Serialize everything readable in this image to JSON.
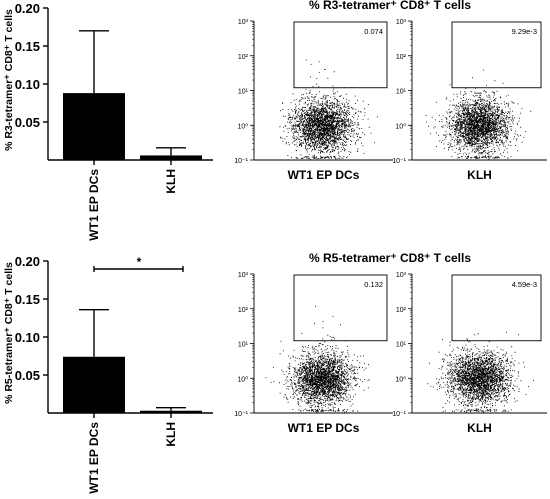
{
  "figure": {
    "panels": [
      {
        "id": "r3",
        "bar_ylabel": "% R3-tetramer⁺ CD8⁺ T cells",
        "flow_title": "% R3-tetramer⁺  CD8⁺ T cells",
        "significance": ""
      },
      {
        "id": "r5",
        "bar_ylabel": "% R5-tetramer⁺ CD8⁺ T cells",
        "flow_title": "% R5-tetramer⁺  CD8⁺ T cells",
        "significance": "*"
      }
    ]
  },
  "chart_data": [
    {
      "type": "bar",
      "title": "",
      "xlabel": "",
      "ylabel": "% R3-tetramer⁺ CD8⁺ T cells",
      "categories": [
        "WT1 EP DCs",
        "KLH"
      ],
      "values": [
        0.088,
        0.006
      ],
      "error": [
        0.082,
        0.01
      ],
      "ylim": [
        0,
        0.2
      ],
      "yticks": [
        "0.05",
        "0.10",
        "0.15",
        "0.20"
      ],
      "ytick_values": [
        0.05,
        0.1,
        0.15,
        0.2
      ],
      "bar_color": "#000000"
    },
    {
      "type": "scatter",
      "title": "% R3-tetramer⁺  CD8⁺ T cells",
      "subplots": [
        {
          "xlabel": "WT1 EP DCs",
          "gate_value": "0.074"
        },
        {
          "xlabel": "KLH",
          "gate_value": "9.29e-3"
        }
      ],
      "y_log": true,
      "ylim": [
        0.1,
        1000
      ],
      "yticks": [
        "10⁻¹",
        "10⁰",
        "10¹",
        "10²",
        "10³"
      ],
      "gate_ylim": [
        12,
        1000
      ]
    },
    {
      "type": "bar",
      "title": "",
      "xlabel": "",
      "ylabel": "% R5-tetramer⁺ CD8⁺ T cells",
      "categories": [
        "WT1 EP DCs",
        "KLH"
      ],
      "values": [
        0.074,
        0.003
      ],
      "error": [
        0.062,
        0.004
      ],
      "ylim": [
        0,
        0.2
      ],
      "yticks": [
        "0.05",
        "0.10",
        "0.15",
        "0.20"
      ],
      "ytick_values": [
        0.05,
        0.1,
        0.15,
        0.2
      ],
      "annotation": "*",
      "bar_color": "#000000"
    },
    {
      "type": "scatter",
      "title": "% R5-tetramer⁺  CD8⁺ T cells",
      "subplots": [
        {
          "xlabel": "WT1 EP DCs",
          "gate_value": "0.132"
        },
        {
          "xlabel": "KLH",
          "gate_value": "4.59e-3"
        }
      ],
      "y_log": true,
      "ylim": [
        0.1,
        1000
      ],
      "yticks": [
        "10⁻¹",
        "10⁰",
        "10¹",
        "10²",
        "10³"
      ],
      "gate_ylim": [
        12,
        1000
      ]
    }
  ]
}
